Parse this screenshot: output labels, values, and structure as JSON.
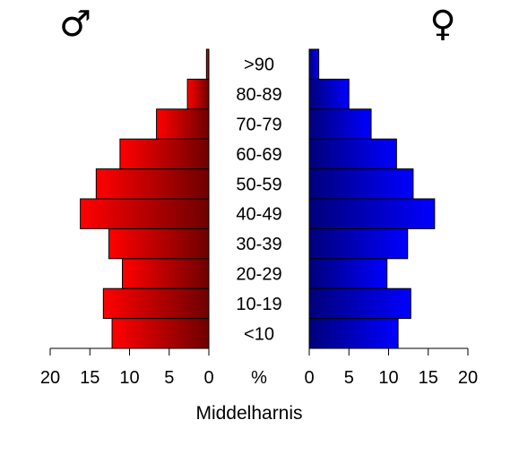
{
  "chart_data": {
    "type": "bar",
    "orientation": "horizontal-population-pyramid",
    "title": "Middelharnis",
    "categories": [
      "<10",
      "10-19",
      "20-29",
      "30-39",
      "40-49",
      "50-59",
      "60-69",
      "70-79",
      "80-89",
      ">90"
    ],
    "center_axis_label": "%",
    "series": [
      {
        "symbol": "♂",
        "values": [
          12.2,
          13.3,
          10.9,
          12.6,
          16.2,
          14.2,
          11.2,
          6.6,
          2.7,
          0.3
        ],
        "color_light": "#ff0000",
        "color_dark": "#6e0000",
        "side": "left"
      },
      {
        "symbol": "♀",
        "values": [
          11.2,
          12.8,
          9.8,
          12.4,
          15.8,
          13.1,
          11.0,
          7.8,
          5.0,
          1.2
        ],
        "color_light": "#0000ff",
        "color_dark": "#00007a",
        "side": "right"
      }
    ],
    "xlim": [
      0,
      20
    ],
    "xticks": [
      0,
      5,
      10,
      15,
      20
    ],
    "xtick_labels": [
      "0",
      "5",
      "10",
      "15",
      "20"
    ],
    "grid": false,
    "legend": "none"
  }
}
